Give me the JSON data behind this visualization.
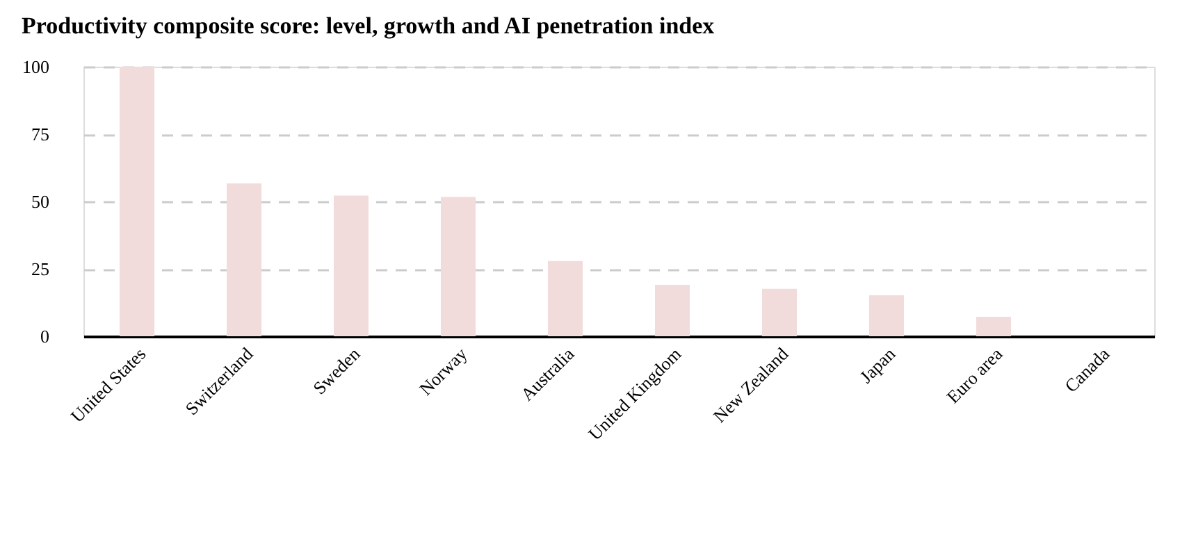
{
  "chart_data": {
    "type": "bar",
    "title": "Productivity composite score: level, growth and AI penetration index",
    "categories": [
      "United States",
      "Switzerland",
      "Sweden",
      "Norway",
      "Australia",
      "United Kingdom",
      "New Zealand",
      "Japan",
      "Euro area",
      "Canada"
    ],
    "values": [
      100,
      56.7,
      52.2,
      51.7,
      27.9,
      19.1,
      17.6,
      15.2,
      7.2,
      0
    ],
    "color": "#f2dcdb",
    "ylim": [
      0,
      100
    ],
    "yticks": [
      0,
      25,
      50,
      75,
      100
    ],
    "grid": "y"
  }
}
